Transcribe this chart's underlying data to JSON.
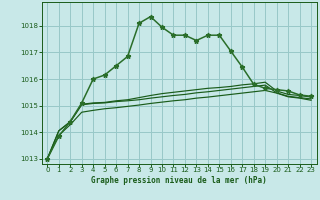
{
  "xlabel": "Graphe pression niveau de la mer (hPa)",
  "bg_color": "#c8e8e8",
  "grid_color": "#98c8c8",
  "line_color_dark": "#1a5c1a",
  "line_color_mid": "#2a6e2a",
  "xlim": [
    -0.5,
    23.5
  ],
  "ylim": [
    1012.8,
    1018.9
  ],
  "yticks": [
    1013,
    1014,
    1015,
    1016,
    1017,
    1018
  ],
  "xticks": [
    0,
    1,
    2,
    3,
    4,
    5,
    6,
    7,
    8,
    9,
    10,
    11,
    12,
    13,
    14,
    15,
    16,
    17,
    18,
    19,
    20,
    21,
    22,
    23
  ],
  "series1": [
    1013.0,
    1013.85,
    1014.4,
    1015.1,
    1016.0,
    1016.15,
    1016.5,
    1016.85,
    1018.1,
    1018.35,
    1017.95,
    1017.65,
    1017.65,
    1017.45,
    1017.65,
    1017.65,
    1017.05,
    1016.45,
    1015.8,
    1015.65,
    1015.6,
    1015.55,
    1015.4,
    1015.35
  ],
  "series2": [
    1013.0,
    1014.05,
    1014.4,
    1015.05,
    1015.1,
    1015.12,
    1015.18,
    1015.22,
    1015.3,
    1015.38,
    1015.45,
    1015.5,
    1015.55,
    1015.6,
    1015.65,
    1015.68,
    1015.72,
    1015.78,
    1015.82,
    1015.88,
    1015.55,
    1015.42,
    1015.38,
    1015.32
  ],
  "series3": [
    1013.0,
    1014.05,
    1014.38,
    1015.03,
    1015.08,
    1015.1,
    1015.15,
    1015.18,
    1015.22,
    1015.28,
    1015.33,
    1015.38,
    1015.42,
    1015.48,
    1015.52,
    1015.57,
    1015.62,
    1015.67,
    1015.72,
    1015.77,
    1015.48,
    1015.35,
    1015.3,
    1015.25
  ],
  "series4": [
    1013.0,
    1013.88,
    1014.28,
    1014.75,
    1014.82,
    1014.88,
    1014.92,
    1014.97,
    1015.02,
    1015.08,
    1015.13,
    1015.18,
    1015.22,
    1015.28,
    1015.32,
    1015.37,
    1015.42,
    1015.47,
    1015.52,
    1015.57,
    1015.47,
    1015.33,
    1015.28,
    1015.2
  ]
}
